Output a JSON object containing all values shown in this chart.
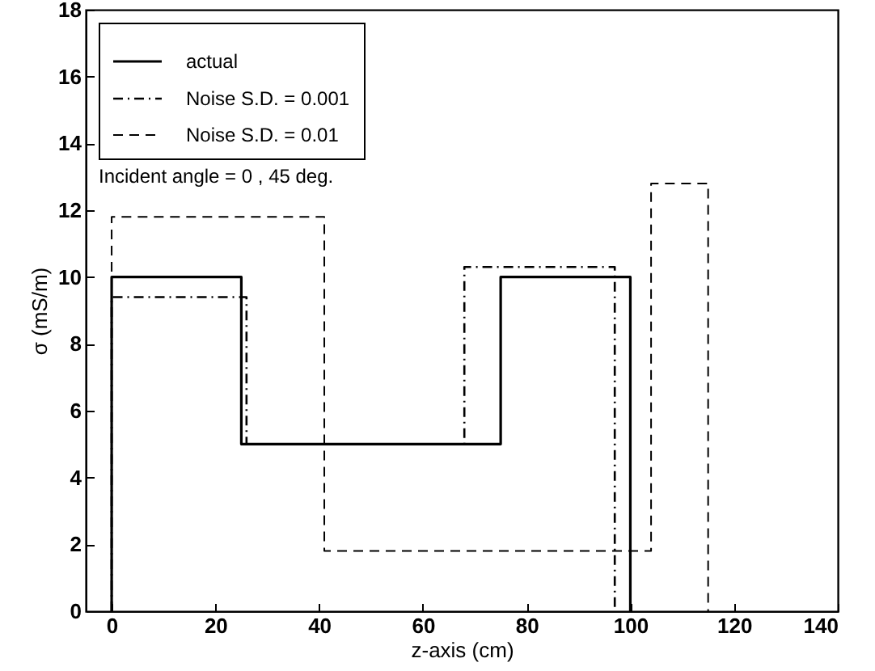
{
  "chart_data": {
    "type": "line",
    "xlabel": "z-axis (cm)",
    "ylabel": "σ (mS/m)",
    "xlim": [
      -5,
      140
    ],
    "xticks": [
      0,
      20,
      40,
      60,
      80,
      100,
      120,
      140
    ],
    "ylim": [
      0,
      18
    ],
    "yticks": [
      0,
      2,
      4,
      6,
      8,
      10,
      12,
      14,
      16,
      18
    ],
    "legend": "top left",
    "annotations": [
      "Incident angle = 0  ,  45 deg."
    ],
    "series": [
      {
        "name": "actual",
        "color": "#000000",
        "line_style": "solid",
        "x": [
          0,
          0,
          25,
          25,
          75,
          75,
          100,
          100
        ],
        "values": [
          0,
          10,
          10,
          5,
          5,
          10,
          10,
          0
        ]
      },
      {
        "name": "Noise S.D. = 0.001",
        "color": "#000000",
        "line_style": "dashdot",
        "x": [
          0,
          0,
          26,
          26,
          68,
          68,
          97,
          97
        ],
        "values": [
          0,
          9.4,
          9.4,
          5,
          5,
          10.3,
          10.3,
          0
        ]
      },
      {
        "name": "Noise S.D. = 0.01",
        "color": "#000000",
        "line_style": "dashed",
        "x": [
          0,
          0,
          41,
          41,
          104,
          104,
          115,
          115
        ],
        "values": [
          0,
          11.8,
          11.8,
          1.8,
          1.8,
          12.8,
          12.8,
          0
        ]
      }
    ]
  }
}
